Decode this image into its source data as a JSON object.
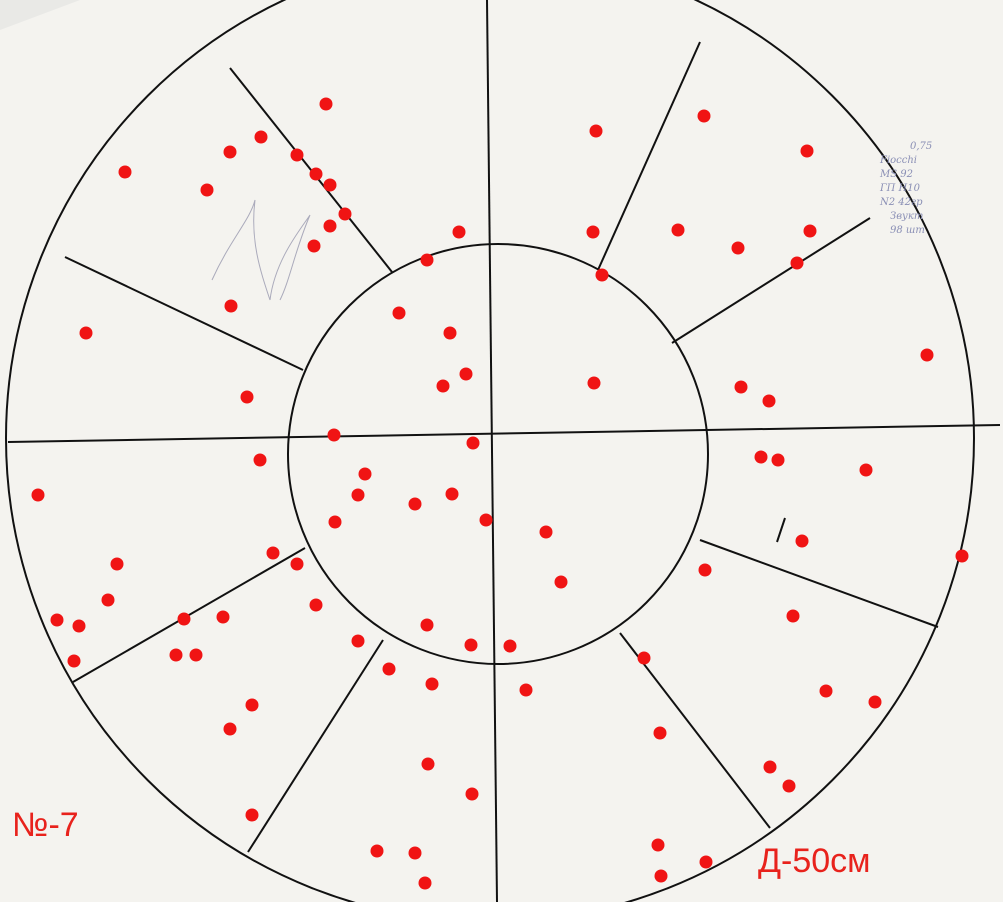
{
  "target": {
    "number_label": "№-7",
    "diameter_label": "Д-50см",
    "hit_color": "#f01414",
    "handwritten_notes": [
      "0,75",
      "Fiocchi",
      "MS 92",
      "ГП Н10",
      "N2 42гр",
      "Звукт",
      "98 шт"
    ]
  }
}
